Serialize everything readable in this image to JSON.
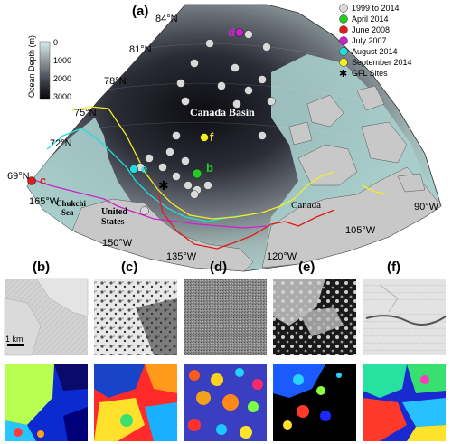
{
  "panel_labels": {
    "a": "(a)",
    "b": "(b)",
    "c": "(c)",
    "d": "(d)",
    "e": "(e)",
    "f": "(f)"
  },
  "map": {
    "latitudes": [
      "84°N",
      "81°N",
      "78°N",
      "75°N",
      "72°N",
      "69°N"
    ],
    "longitudes": [
      "165°W",
      "150°W",
      "135°W",
      "120°W",
      "105°W",
      "90°W"
    ],
    "regions": {
      "basin": "Canada Basin",
      "chukchi_line1": "Chukchi",
      "chukchi_line2": "Sea",
      "us_line1": "United",
      "us_line2": "States",
      "canada": "Canada"
    },
    "colorbar": {
      "label": "Ocean Depth (m)",
      "ticks": [
        "0",
        "1000",
        "2000",
        "3000"
      ]
    },
    "site_letters": {
      "b": "b",
      "c": "c",
      "d": "d",
      "e": "e",
      "f": "f"
    }
  },
  "legend": [
    {
      "label": "1999 to 2014",
      "color": "#d9d9d9"
    },
    {
      "label": "April 2014",
      "color": "#22cc22"
    },
    {
      "label": "June 2008",
      "color": "#e11b1b"
    },
    {
      "label": "July 2007",
      "color": "#cc22cc"
    },
    {
      "label": "August 2014",
      "color": "#22dddd"
    },
    {
      "label": "September 2014",
      "color": "#f2ee22"
    },
    {
      "label": "GFL Sites",
      "symbol": "asterisk"
    }
  ],
  "scale_bar": "1 km",
  "colors": {
    "land": "#c8c8c8",
    "shelf": "#a9cfcc",
    "deep": "#0e0e12"
  }
}
